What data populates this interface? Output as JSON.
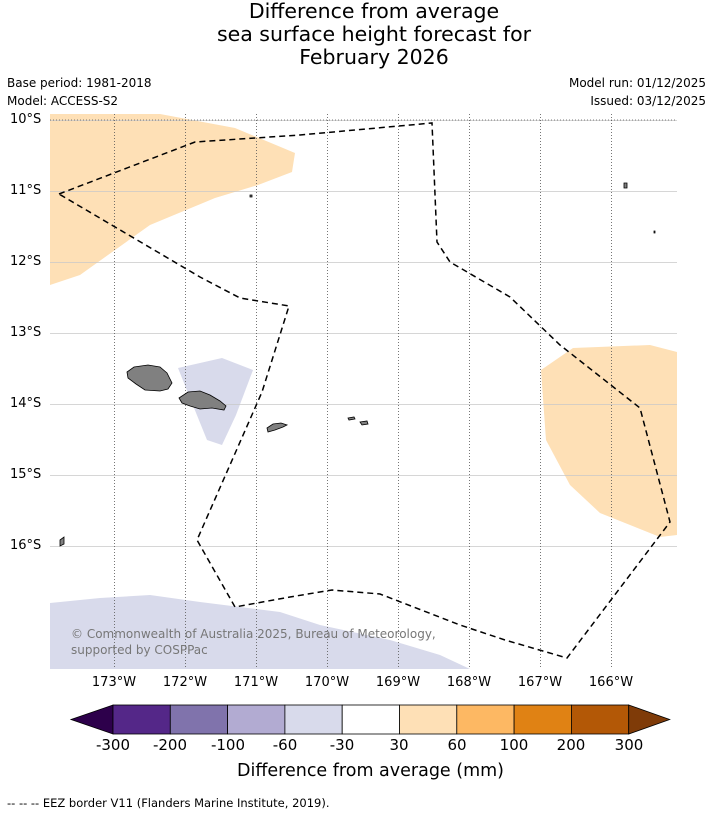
{
  "title": {
    "line1": "Difference from average",
    "line2": "sea surface height forecast for",
    "line3": "February 2026"
  },
  "metadata": {
    "base_period": "Base period: 1981-2018",
    "model": "Model: ACCESS-S2",
    "model_run": "Model run: 01/12/2025",
    "issued": "Issued: 03/12/2025"
  },
  "axes": {
    "latitudes": [
      "10°S",
      "11°S",
      "12°S",
      "13°S",
      "14°S",
      "15°S",
      "16°S"
    ],
    "longitudes": [
      "173°W",
      "172°W",
      "171°W",
      "170°W",
      "169°W",
      "168°W",
      "167°W",
      "166°W"
    ]
  },
  "map": {
    "extent": {
      "lon_min": -173.9,
      "lon_max": -165.1,
      "lat_min": -17.7,
      "lat_max": -9.9
    },
    "land_color": "#808080",
    "eez_color": "#000000",
    "copyright": "© Commonwealth of Australia 2025, Bureau of Meteorology, supported by COSPPac"
  },
  "colorbar": {
    "title": "Difference from average (mm)",
    "ticks": [
      "-300",
      "-200",
      "-100",
      "-60",
      "-30",
      "30",
      "60",
      "100",
      "200",
      "300"
    ],
    "colors": [
      "#2d004b",
      "#542788",
      "#8073ac",
      "#b2abd2",
      "#d8daeb",
      "#ffffff",
      "#fee0b6",
      "#fdb863",
      "#e08214",
      "#b35806",
      "#7f3b08"
    ]
  },
  "footer": "--  --  -- EEZ border V11 (Flanders Marine Institute, 2019)."
}
